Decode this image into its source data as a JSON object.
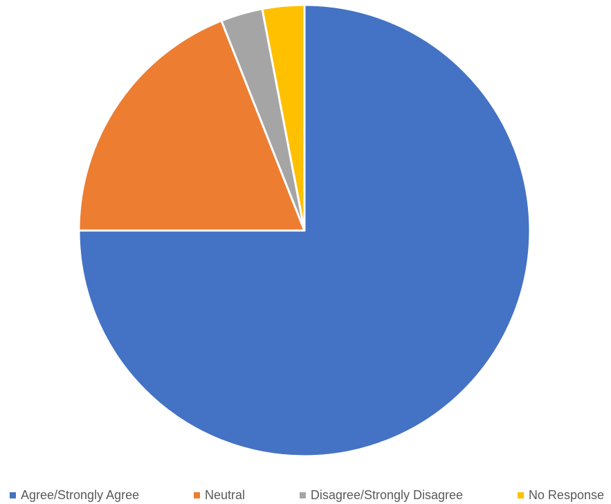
{
  "chart_data": {
    "type": "pie",
    "title": "",
    "slices": [
      {
        "label": "Agree/Strongly Agree",
        "value": 75,
        "color": "#4472C4"
      },
      {
        "label": "Neutral",
        "value": 19,
        "color": "#ED7D31"
      },
      {
        "label": "Disagree/Strongly Disagree",
        "value": 3,
        "color": "#A5A5A5"
      },
      {
        "label": "No Response",
        "value": 3,
        "color": "#FFC000"
      }
    ],
    "start_angle": "12 o'clock",
    "direction": "clockwise",
    "legend_position": "bottom"
  }
}
